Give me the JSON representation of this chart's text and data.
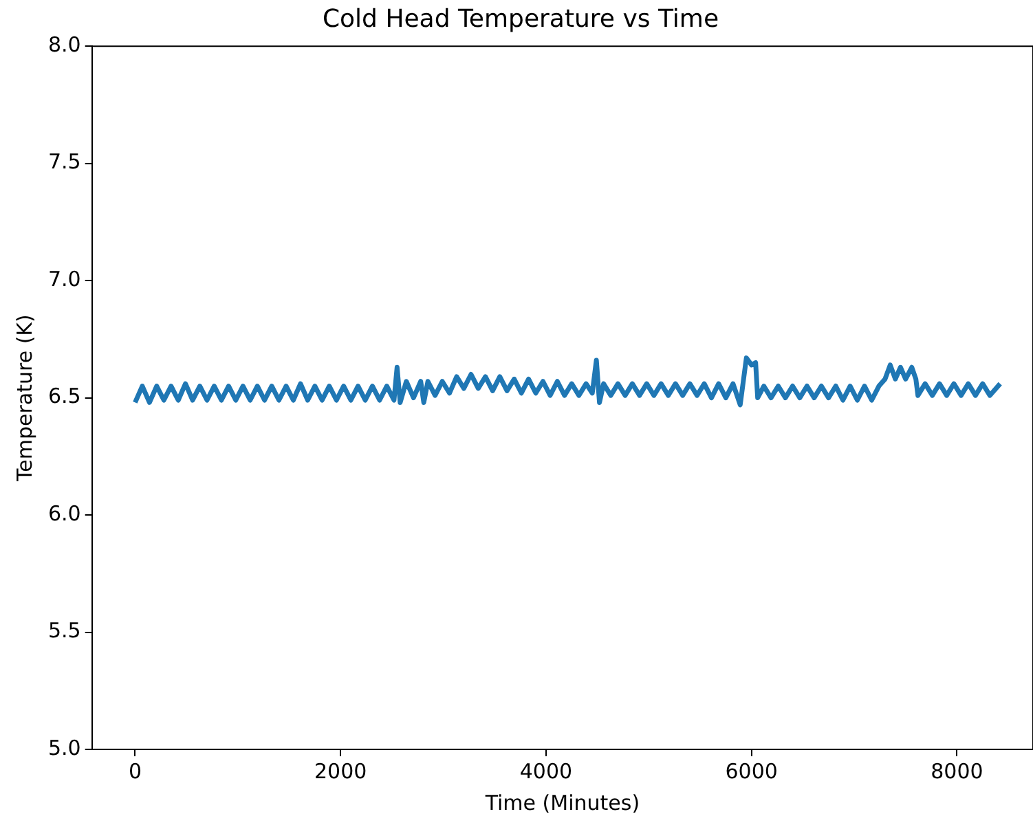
{
  "chart_data": {
    "type": "line",
    "title": "Cold Head Temperature vs Time",
    "xlabel": "Time (Minutes)",
    "ylabel": "Temperature (K)",
    "xlim": [
      -420,
      8740
    ],
    "xticks": [
      0,
      2000,
      4000,
      6000,
      8000
    ],
    "ylim": [
      5.0,
      8.0
    ],
    "yticks": [
      {
        "value": 5,
        "label": "5.0"
      },
      5.5,
      {
        "value": 6,
        "label": "6.0"
      },
      6.5,
      {
        "value": 7,
        "label": "7.0"
      },
      7.5,
      {
        "value": 8,
        "label": "8.0"
      }
    ],
    "grid": false,
    "legend": false,
    "marker": "none",
    "line_style": "solid",
    "series": [
      {
        "color": "#1f77b4",
        "x": [
          0,
          70,
          140,
          210,
          280,
          350,
          420,
          490,
          560,
          630,
          700,
          770,
          840,
          910,
          980,
          1050,
          1120,
          1190,
          1260,
          1330,
          1400,
          1470,
          1540,
          1610,
          1680,
          1750,
          1820,
          1890,
          1960,
          2030,
          2100,
          2170,
          2240,
          2310,
          2380,
          2450,
          2520,
          2550,
          2580,
          2640,
          2710,
          2780,
          2810,
          2850,
          2920,
          2990,
          3060,
          3130,
          3200,
          3270,
          3340,
          3410,
          3480,
          3550,
          3620,
          3690,
          3760,
          3830,
          3900,
          3970,
          4040,
          4110,
          4180,
          4250,
          4320,
          4390,
          4450,
          4490,
          4520,
          4560,
          4630,
          4700,
          4770,
          4840,
          4910,
          4980,
          5050,
          5120,
          5190,
          5260,
          5330,
          5400,
          5470,
          5540,
          5610,
          5680,
          5750,
          5820,
          5890,
          5950,
          6000,
          6040,
          6060,
          6120,
          6190,
          6260,
          6330,
          6400,
          6470,
          6540,
          6610,
          6680,
          6750,
          6820,
          6890,
          6960,
          7030,
          7100,
          7170,
          7240,
          7300,
          7350,
          7400,
          7450,
          7500,
          7560,
          7600,
          7620,
          7690,
          7760,
          7830,
          7900,
          7970,
          8040,
          8110,
          8180,
          8250,
          8320,
          8420
        ],
        "values": [
          6.48,
          6.55,
          6.48,
          6.55,
          6.49,
          6.55,
          6.49,
          6.56,
          6.49,
          6.55,
          6.49,
          6.55,
          6.49,
          6.55,
          6.49,
          6.55,
          6.49,
          6.55,
          6.49,
          6.55,
          6.49,
          6.55,
          6.49,
          6.56,
          6.49,
          6.55,
          6.49,
          6.55,
          6.49,
          6.55,
          6.49,
          6.55,
          6.49,
          6.55,
          6.49,
          6.55,
          6.49,
          6.63,
          6.48,
          6.57,
          6.5,
          6.57,
          6.48,
          6.57,
          6.51,
          6.57,
          6.52,
          6.59,
          6.54,
          6.6,
          6.54,
          6.59,
          6.53,
          6.59,
          6.53,
          6.58,
          6.52,
          6.58,
          6.52,
          6.57,
          6.51,
          6.57,
          6.51,
          6.56,
          6.51,
          6.56,
          6.52,
          6.66,
          6.48,
          6.56,
          6.51,
          6.56,
          6.51,
          6.56,
          6.51,
          6.56,
          6.51,
          6.56,
          6.51,
          6.56,
          6.51,
          6.56,
          6.51,
          6.56,
          6.5,
          6.56,
          6.5,
          6.56,
          6.47,
          6.67,
          6.64,
          6.65,
          6.5,
          6.55,
          6.5,
          6.55,
          6.5,
          6.55,
          6.5,
          6.55,
          6.5,
          6.55,
          6.5,
          6.55,
          6.49,
          6.55,
          6.49,
          6.55,
          6.49,
          6.55,
          6.58,
          6.64,
          6.58,
          6.63,
          6.58,
          6.63,
          6.58,
          6.51,
          6.56,
          6.51,
          6.56,
          6.51,
          6.56,
          6.51,
          6.56,
          6.51,
          6.56,
          6.51,
          6.56
        ]
      }
    ]
  }
}
